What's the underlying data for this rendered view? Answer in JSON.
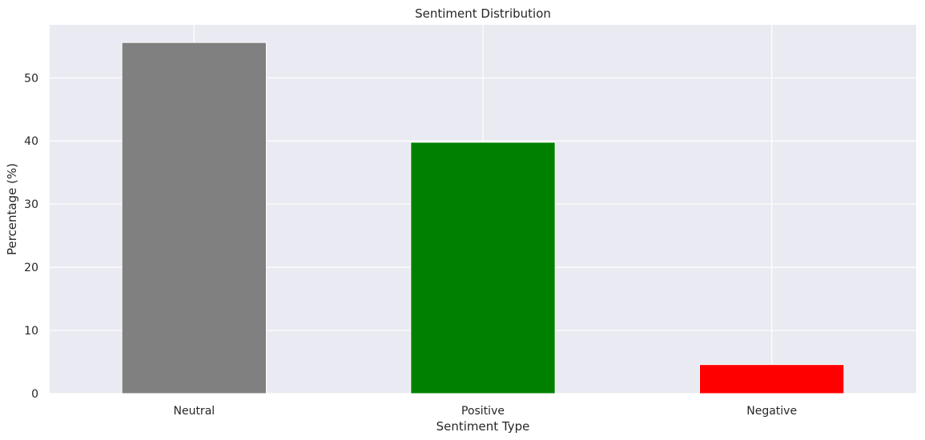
{
  "chart_data": {
    "type": "bar",
    "title": "Sentiment Distribution",
    "xlabel": "Sentiment Type",
    "ylabel": "Percentage (%)",
    "categories": [
      "Neutral",
      "Positive",
      "Negative"
    ],
    "values": [
      55.6,
      39.8,
      4.6
    ],
    "colors": [
      "#808080",
      "#008000",
      "#ff0000"
    ],
    "ylim": [
      0,
      58.4
    ],
    "yticks": [
      0,
      10,
      20,
      30,
      40,
      50
    ],
    "grid": true,
    "background": "#eaeaf2"
  }
}
